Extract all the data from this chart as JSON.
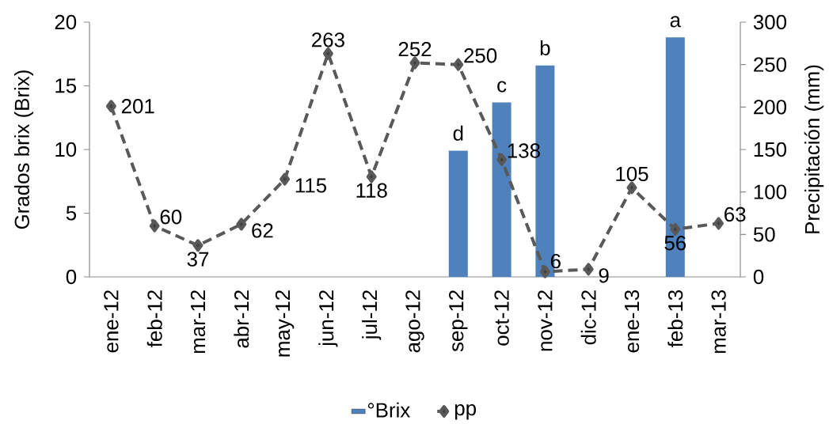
{
  "chart_data": {
    "type": "bar",
    "ylabel": "Grados brix (Brix)",
    "y2label": "Precipitación (mm)",
    "categories": [
      "ene-12",
      "feb-12",
      "mar-12",
      "abr-12",
      "may-12",
      "jun-12",
      "jul-12",
      "ago-12",
      "sep-12",
      "oct-12",
      "nov-12",
      "dic-12",
      "ene-13",
      "feb-13",
      "mar-13"
    ],
    "series": [
      {
        "name": "°Brix",
        "color": "#4f81bd",
        "values": [
          null,
          null,
          null,
          null,
          null,
          null,
          null,
          null,
          9.9,
          13.7,
          16.6,
          null,
          null,
          18.8,
          null
        ]
      },
      {
        "name": "pp",
        "type": "line",
        "axis": "y2",
        "color": "#595959",
        "marker": "diamond",
        "line_style": "dashed",
        "values": [
          201,
          60,
          37,
          62,
          115,
          263,
          118,
          252,
          250,
          138,
          6,
          9,
          105,
          56,
          63
        ],
        "value_labels": [
          "201",
          "60",
          "37",
          "62",
          "115",
          "263",
          "118",
          "252",
          "250",
          "138",
          "6",
          "9",
          "105",
          "56",
          "63"
        ]
      }
    ],
    "ylim": [
      0,
      20
    ],
    "yticks": [
      0,
      5,
      10,
      15,
      20
    ],
    "y2lim": [
      0,
      300
    ],
    "y2ticks": [
      0,
      50,
      100,
      150,
      200,
      250,
      300
    ],
    "annotations": [
      {
        "text": "d",
        "x": "sep-12",
        "y": 9.9
      },
      {
        "text": "c",
        "x": "oct-12",
        "y": 13.7
      },
      {
        "text": "b",
        "x": "nov-12",
        "y": 16.6
      },
      {
        "text": "a",
        "x": "feb-13",
        "y": 18.8
      }
    ],
    "legend": "bottom",
    "grid": false
  }
}
